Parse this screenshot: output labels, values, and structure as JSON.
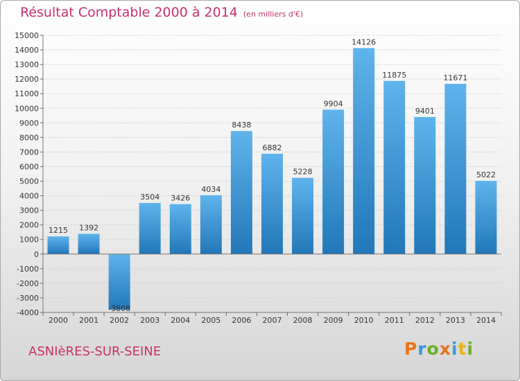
{
  "title": {
    "main": "Résultat Comptable 2000 à 2014",
    "sub": "(en milliers d'€)"
  },
  "place": "ASNIèRES-SUR-SEINE",
  "logo": {
    "letters": [
      "P",
      "r",
      "o",
      "x",
      "i",
      "t",
      "i"
    ],
    "colors": [
      "#e8731a",
      "#3a9ad9",
      "#6ab023",
      "#e8731a",
      "#3a9ad9",
      "#e8b41a",
      "#6ab023"
    ]
  },
  "colors": {
    "title": "#c8306a",
    "bar_top": "#5fb4ec",
    "bar_bottom": "#2277b8"
  },
  "chart_data": {
    "type": "bar",
    "categories": [
      "2000",
      "2001",
      "2002",
      "2003",
      "2004",
      "2005",
      "2006",
      "2007",
      "2008",
      "2009",
      "2010",
      "2011",
      "2012",
      "2013",
      "2014"
    ],
    "values": [
      1215,
      1392,
      -3808,
      3504,
      3426,
      4034,
      8438,
      6882,
      5228,
      9904,
      14126,
      11875,
      9401,
      11671,
      5022
    ],
    "value_labels": [
      "1215",
      "1392",
      "-3808",
      "3504",
      "3426",
      "4034",
      "8438",
      "6882",
      "5228",
      "9904",
      "14126",
      "11875",
      "9401",
      "11671",
      "5022"
    ],
    "yticks": [
      15000,
      14000,
      13000,
      12000,
      11000,
      10000,
      9000,
      8000,
      7000,
      6000,
      5000,
      4000,
      3000,
      2000,
      1000,
      0,
      -1000,
      -2000,
      -3000,
      -4000
    ],
    "ylim": [
      -4000,
      15000
    ],
    "grid": "horizontal"
  }
}
